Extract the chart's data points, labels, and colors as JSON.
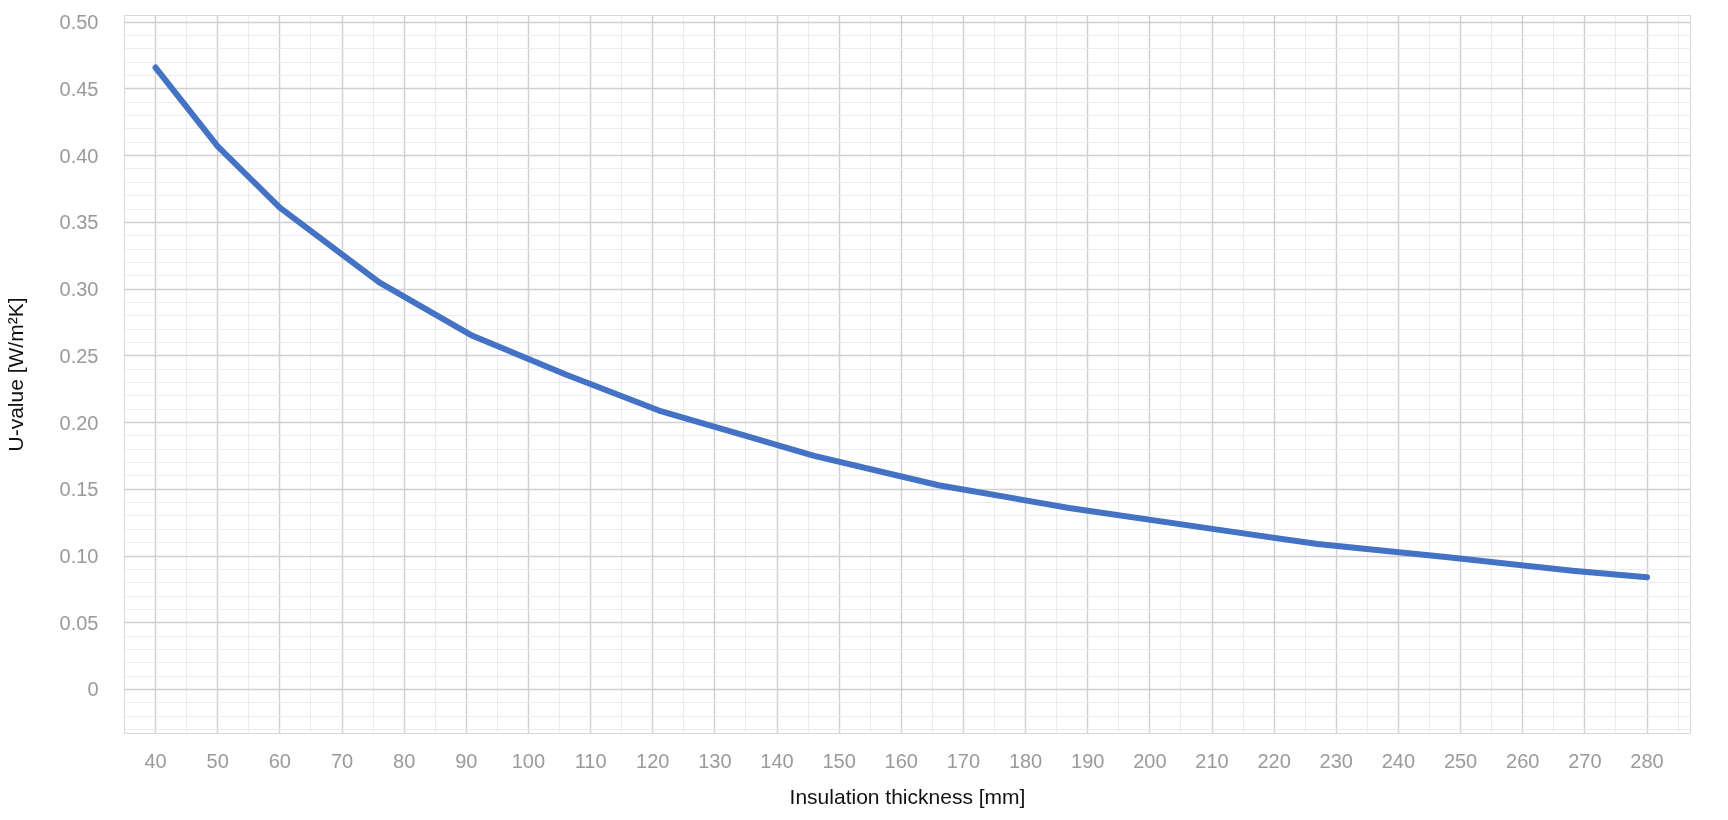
{
  "chart_data": {
    "type": "line",
    "xlabel": "Insulation thickness [mm]",
    "ylabel": "U-value [W/m²K]",
    "x": [
      40,
      50,
      60,
      76,
      91,
      106,
      121,
      146,
      166,
      187,
      212,
      227,
      248,
      268,
      280
    ],
    "series": [
      {
        "color": "#4472c4",
        "values": [
          0.466,
          0.407,
          0.361,
          0.305,
          0.265,
          0.236,
          0.209,
          0.175,
          0.153,
          0.136,
          0.119,
          0.109,
          0.099,
          0.089,
          0.084
        ]
      }
    ],
    "xlim": [
      35,
      287
    ],
    "ylim": [
      -0.033,
      0.505
    ],
    "xticks": [
      40,
      50,
      60,
      70,
      80,
      90,
      100,
      110,
      120,
      130,
      140,
      150,
      160,
      170,
      180,
      190,
      200,
      210,
      220,
      230,
      240,
      250,
      260,
      270,
      280
    ],
    "yticks": [
      0,
      0.05,
      {
        "value": 0.1,
        "label": "0.10"
      },
      0.15,
      {
        "value": 0.2,
        "label": "0.20"
      },
      0.25,
      {
        "value": 0.3,
        "label": "0.30"
      },
      0.35,
      {
        "value": 0.4,
        "label": "0.40"
      },
      0.45,
      {
        "value": 0.5,
        "label": "0.50"
      }
    ],
    "grid": true,
    "marker": "none",
    "line_style": "solid"
  }
}
